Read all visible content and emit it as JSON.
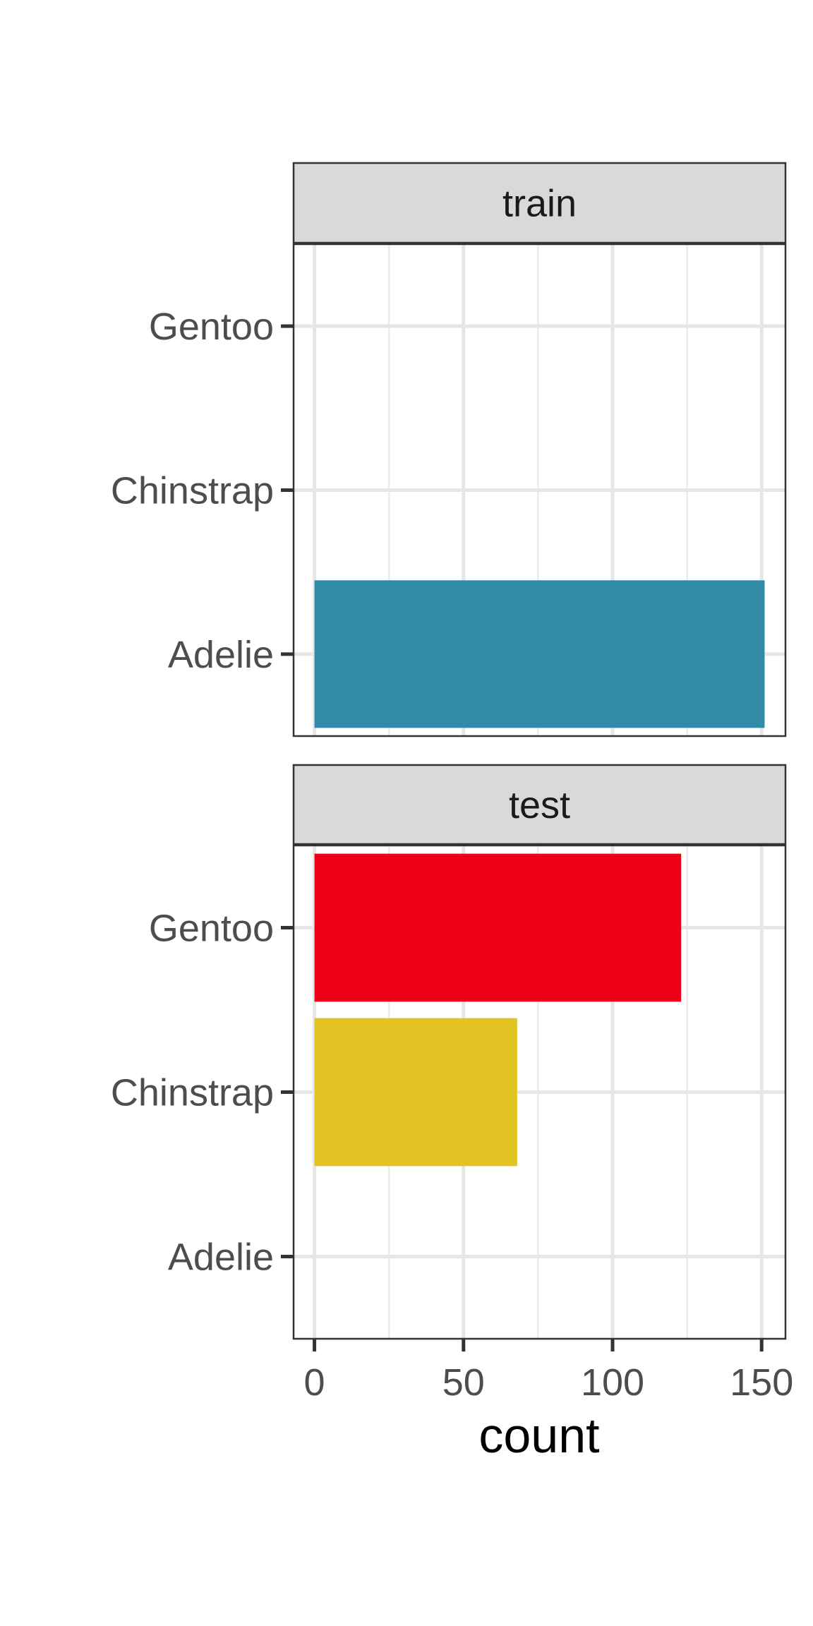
{
  "chart_data": {
    "type": "bar",
    "orientation": "horizontal",
    "facets": [
      "train",
      "test"
    ],
    "categories": [
      "Gentoo",
      "Chinstrap",
      "Adelie"
    ],
    "xlabel": "count",
    "xlim": [
      -7,
      158
    ],
    "x_ticks": [
      0,
      50,
      100,
      150
    ],
    "grid": true,
    "panels": [
      {
        "facet": "train",
        "bars": [
          {
            "category": "Gentoo",
            "value": 0,
            "color": "#318AA6"
          },
          {
            "category": "Chinstrap",
            "value": 0,
            "color": "#318AA6"
          },
          {
            "category": "Adelie",
            "value": 151,
            "color": "#318AA6"
          }
        ]
      },
      {
        "facet": "test",
        "bars": [
          {
            "category": "Gentoo",
            "value": 123,
            "color": "#EF0019"
          },
          {
            "category": "Chinstrap",
            "value": 68,
            "color": "#E3C224"
          },
          {
            "category": "Adelie",
            "value": 0,
            "color": "#318AA6"
          }
        ]
      }
    ]
  }
}
